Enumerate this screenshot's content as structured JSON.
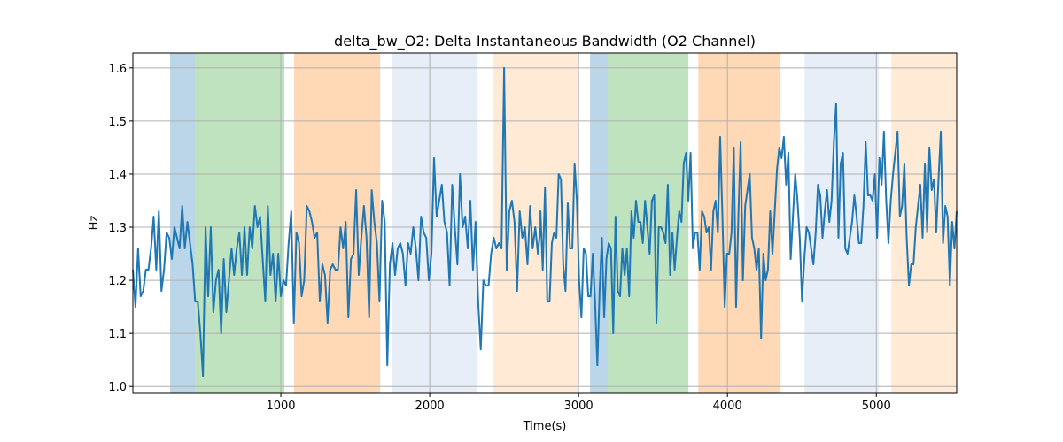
{
  "chart_data": {
    "type": "line",
    "title": "delta_bw_O2: Delta Instantaneous Bandwidth (O2 Channel)",
    "xlabel": "Time(s)",
    "ylabel": "Hz",
    "xlim": [
      6,
      5540
    ],
    "ylim": [
      0.987,
      1.628
    ],
    "xticks": [
      1000,
      2000,
      3000,
      4000,
      5000
    ],
    "xtick_labels": [
      "1000",
      "2000",
      "3000",
      "4000",
      "5000"
    ],
    "yticks": [
      1.0,
      1.1,
      1.2,
      1.3,
      1.4,
      1.5,
      1.6
    ],
    "ytick_labels": [
      "1.0",
      "1.1",
      "1.2",
      "1.3",
      "1.4",
      "1.5",
      "1.6"
    ],
    "grid": true,
    "line_color": "#1f77b4",
    "spans": [
      {
        "x0": 256,
        "x1": 423,
        "color": "#1f77b4"
      },
      {
        "x0": 423,
        "x1": 1024,
        "color": "#2ca02c"
      },
      {
        "x0": 1089,
        "x1": 1667,
        "color": "#ff7f0e"
      },
      {
        "x0": 1744,
        "x1": 2321,
        "color": "#aec7e8"
      },
      {
        "x0": 2429,
        "x1": 3000,
        "color": "#ffbb78"
      },
      {
        "x0": 3077,
        "x1": 3196,
        "color": "#1f77b4"
      },
      {
        "x0": 3196,
        "x1": 3738,
        "color": "#2ca02c"
      },
      {
        "x0": 3804,
        "x1": 4357,
        "color": "#ff7f0e"
      },
      {
        "x0": 4518,
        "x1": 5018,
        "color": "#aec7e8"
      },
      {
        "x0": 5101,
        "x1": 5540,
        "color": "#ffbb78"
      }
    ],
    "segments": [
      {
        "x0": 6,
        "x1": 2744,
        "values": [
          1.22,
          1.15,
          1.26,
          1.17,
          1.18,
          1.22,
          1.22,
          1.26,
          1.32,
          1.22,
          1.33,
          1.18,
          1.22,
          1.29,
          1.28,
          1.24,
          1.3,
          1.28,
          1.26,
          1.34,
          1.26,
          1.31,
          1.27,
          1.23,
          1.16,
          1.16,
          1.1,
          1.02,
          1.3,
          1.17,
          1.3,
          1.14,
          1.2,
          1.22,
          1.1,
          1.24,
          1.14,
          1.2,
          1.26,
          1.21,
          1.26,
          1.29,
          1.21,
          1.3,
          1.21,
          1.3,
          1.26,
          1.34,
          1.3,
          1.32,
          1.24,
          1.16,
          1.34,
          1.21,
          1.25,
          1.16,
          1.25,
          1.17,
          1.2,
          1.19,
          1.27,
          1.33,
          1.12,
          1.29,
          1.27,
          1.17,
          1.2,
          1.34,
          1.33,
          1.31,
          1.28,
          1.29,
          1.16,
          1.23,
          1.21,
          1.12,
          1.22,
          1.23,
          1.22,
          1.22,
          1.3,
          1.26,
          1.31,
          1.13,
          1.24,
          1.25,
          1.37,
          1.21,
          1.28,
          1.34,
          1.28,
          1.13,
          1.37,
          1.31,
          1.27,
          1.16,
          1.35,
          1.31,
          1.04,
          1.23,
          1.27,
          1.21,
          1.26,
          1.27,
          1.25,
          1.19,
          1.27,
          1.25,
          1.3,
          1.26,
          1.2,
          1.32,
          1.29,
          1.28,
          1.2,
          1.25,
          1.43,
          1.32,
          1.35,
          1.38,
          1.31,
          1.29,
          1.19,
          1.38,
          1.3,
          1.23,
          1.4,
          1.3,
          1.32,
          1.26,
          1.35,
          1.22,
          1.31,
          1.16,
          1.07,
          1.2,
          1.19,
          1.19,
          1.25,
          1.28,
          1.26,
          1.27,
          1.26,
          1.6,
          1.22,
          1.33,
          1.35,
          1.31,
          1.18,
          1.33,
          1.28,
          1.3,
          1.23,
          1.34,
          1.26,
          1.3,
          1.25,
          1.3
        ]
      },
      {
        "x0": 2744,
        "x1": 5540,
        "values": [
          1.33,
          1.22,
          1.375,
          1.16,
          1.16,
          1.27,
          1.29,
          1.28,
          1.4,
          1.39,
          1.23,
          1.18,
          1.345,
          1.26,
          1.26,
          1.42,
          1.35,
          1.2,
          1.13,
          1.26,
          1.25,
          1.17,
          1.17,
          1.25,
          1.16,
          1.04,
          1.18,
          1.28,
          1.13,
          1.24,
          1.27,
          1.26,
          1.1,
          1.32,
          1.18,
          1.17,
          1.26,
          1.21,
          1.26,
          1.17,
          1.33,
          1.28,
          1.35,
          1.31,
          1.31,
          1.27,
          1.35,
          1.3,
          1.25,
          1.35,
          1.36,
          1.12,
          1.3,
          1.3,
          1.29,
          1.27,
          1.38,
          1.21,
          1.29,
          1.22,
          1.28,
          1.33,
          1.31,
          1.42,
          1.44,
          1.35,
          1.44,
          1.26,
          1.29,
          1.29,
          1.22,
          1.33,
          1.32,
          1.29,
          1.3,
          1.22,
          1.33,
          1.35,
          1.29,
          1.47,
          1.32,
          1.15,
          1.25,
          1.25,
          1.29,
          1.45,
          1.15,
          1.32,
          1.46,
          1.2,
          1.34,
          1.37,
          1.4,
          1.28,
          1.26,
          1.22,
          1.26,
          1.09,
          1.25,
          1.2,
          1.22,
          1.33,
          1.25,
          1.33,
          1.41,
          1.45,
          1.43,
          1.47,
          1.38,
          1.44,
          1.24,
          1.32,
          1.4,
          1.35,
          1.28,
          1.16,
          1.24,
          1.3,
          1.29,
          1.26,
          1.23,
          1.29,
          1.38,
          1.36,
          1.28,
          1.33,
          1.37,
          1.31,
          1.35,
          1.46,
          1.533,
          1.28,
          1.42,
          1.44,
          1.26,
          1.25,
          1.28,
          1.31,
          1.36,
          1.32,
          1.27,
          1.27,
          1.34,
          1.46,
          1.36,
          1.36,
          1.35,
          1.4,
          1.28,
          1.43,
          1.38,
          1.48,
          1.35,
          1.27,
          1.35,
          1.4,
          1.44,
          1.48,
          1.32,
          1.34,
          1.42,
          1.28,
          1.19,
          1.23,
          1.23,
          1.3,
          1.34,
          1.38,
          1.28,
          1.42,
          1.29,
          1.45,
          1.37,
          1.39,
          1.29,
          1.39,
          1.48,
          1.27,
          1.34,
          1.32,
          1.19,
          1.31,
          1.26,
          1.33
        ]
      }
    ]
  }
}
